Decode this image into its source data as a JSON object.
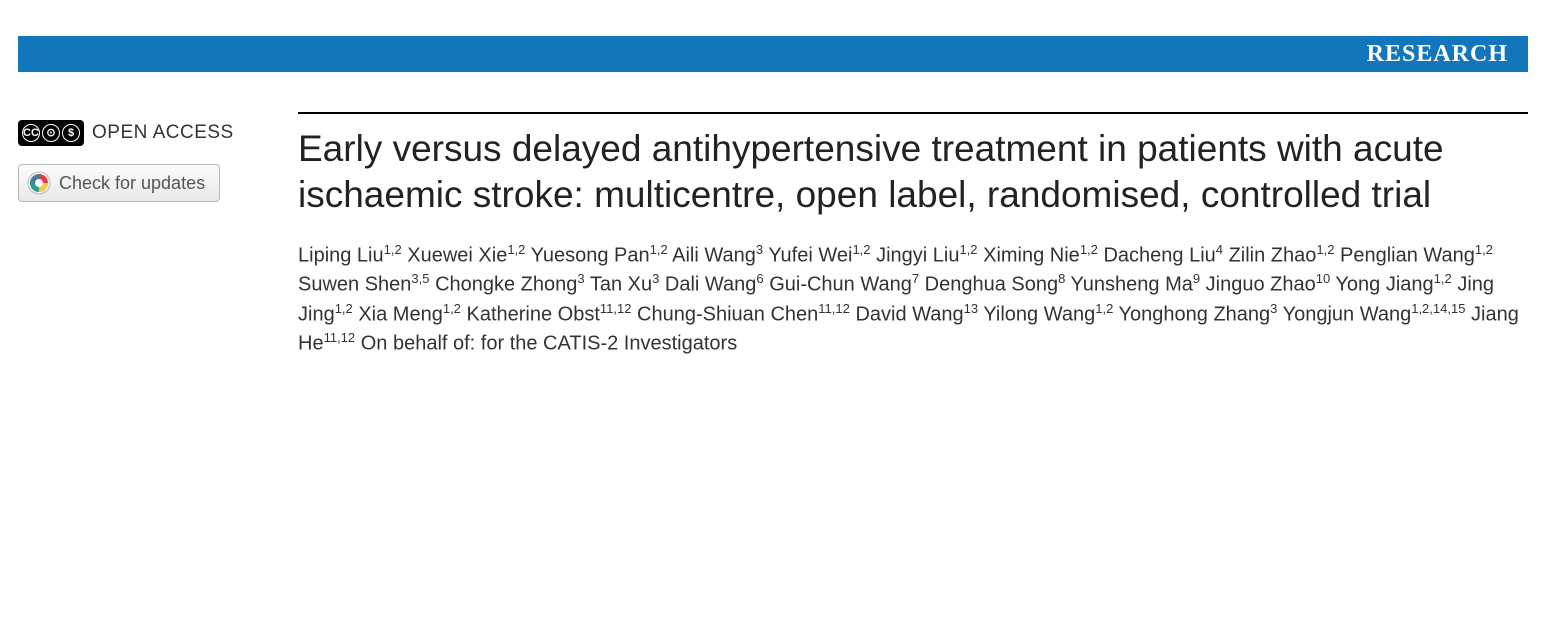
{
  "banner": {
    "label": "RESEARCH",
    "background_color": "#1276bd",
    "text_color": "#ffffff"
  },
  "sidebar": {
    "open_access_label": "OPEN ACCESS",
    "cc_icons": [
      "CC",
      "⊙",
      "$"
    ],
    "updates_button_label": "Check for updates"
  },
  "article": {
    "title": "Early versus delayed antihypertensive treatment in patients with acute ischaemic stroke: multicentre, open label, randomised, controlled trial",
    "authors": [
      {
        "name": "Liping Liu",
        "aff": "1,2"
      },
      {
        "name": "Xuewei Xie",
        "aff": "1,2"
      },
      {
        "name": "Yuesong Pan",
        "aff": "1,2"
      },
      {
        "name": "Aili Wang",
        "aff": "3"
      },
      {
        "name": "Yufei Wei",
        "aff": "1,2"
      },
      {
        "name": "Jingyi Liu",
        "aff": "1,2"
      },
      {
        "name": "Ximing Nie",
        "aff": "1,2"
      },
      {
        "name": "Dacheng Liu",
        "aff": "4"
      },
      {
        "name": "Zilin Zhao",
        "aff": "1,2"
      },
      {
        "name": "Penglian Wang",
        "aff": "1,2"
      },
      {
        "name": "Suwen Shen",
        "aff": "3,5"
      },
      {
        "name": "Chongke Zhong",
        "aff": "3"
      },
      {
        "name": "Tan Xu",
        "aff": "3"
      },
      {
        "name": "Dali Wang",
        "aff": "6"
      },
      {
        "name": "Gui-Chun Wang",
        "aff": "7"
      },
      {
        "name": "Denghua Song",
        "aff": "8"
      },
      {
        "name": "Yunsheng Ma",
        "aff": "9"
      },
      {
        "name": "Jinguo Zhao",
        "aff": "10"
      },
      {
        "name": "Yong Jiang",
        "aff": "1,2"
      },
      {
        "name": "Jing Jing",
        "aff": "1,2"
      },
      {
        "name": "Xia Meng",
        "aff": "1,2"
      },
      {
        "name": "Katherine Obst",
        "aff": "11,12"
      },
      {
        "name": "Chung-Shiuan Chen",
        "aff": "11,12"
      },
      {
        "name": "David Wang",
        "aff": "13"
      },
      {
        "name": "Yilong Wang",
        "aff": "1,2"
      },
      {
        "name": "Yonghong Zhang",
        "aff": "3"
      },
      {
        "name": "Yongjun Wang",
        "aff": "1,2,14,15"
      },
      {
        "name": "Jiang He",
        "aff": "11,12"
      }
    ],
    "behalf_text": "On behalf of: for the CATIS-2 Investigators"
  },
  "styling": {
    "title_fontsize": 37,
    "title_color": "#222222",
    "author_fontsize": 20,
    "author_color": "#333333",
    "rule_color": "#000000",
    "background_color": "#ffffff"
  }
}
